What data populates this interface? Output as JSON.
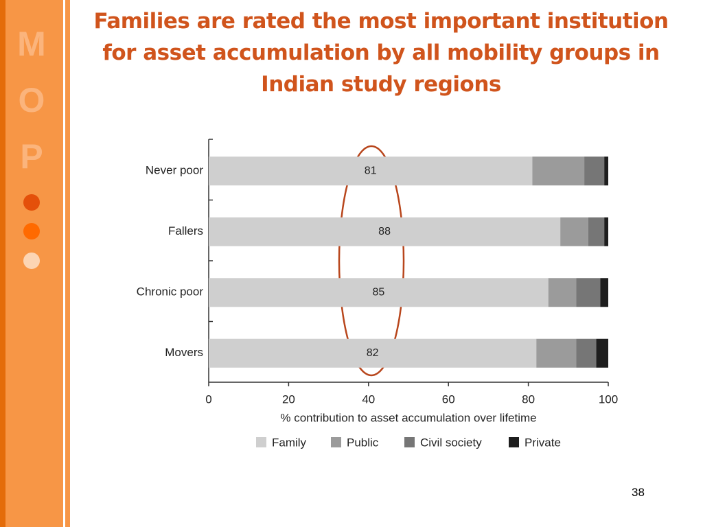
{
  "title": "Families are rated the most important institution for asset accumulation by all mobility groups in Indian study regions",
  "sidebar_letters": [
    "M",
    "O",
    "P"
  ],
  "slide_number": "38",
  "chart_data": {
    "type": "bar",
    "orientation": "horizontal",
    "stacked": true,
    "categories": [
      "Never poor",
      "Fallers",
      "Chronic poor",
      "Movers"
    ],
    "series": [
      {
        "name": "Family",
        "color": "#cfcfcf",
        "values": [
          81,
          88,
          85,
          82
        ]
      },
      {
        "name": "Public",
        "color": "#9b9b9b",
        "values": [
          13,
          7,
          7,
          10
        ]
      },
      {
        "name": "Civil society",
        "color": "#767676",
        "values": [
          5,
          4,
          6,
          5
        ]
      },
      {
        "name": "Private",
        "color": "#1e1e1e",
        "values": [
          1,
          1,
          2,
          3
        ]
      }
    ],
    "labeled_series": 0,
    "xlim": [
      0,
      100
    ],
    "xticks": [
      0,
      20,
      40,
      60,
      80,
      100
    ],
    "xlabel": "% contribution to asset accumulation over lifetime",
    "legend": "bottom"
  }
}
